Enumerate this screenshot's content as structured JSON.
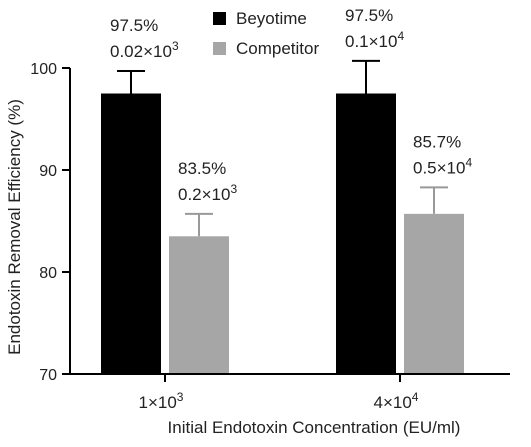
{
  "chart_data": {
    "type": "bar",
    "title": "",
    "xlabel": "Initial Endotoxin Concentration (EU/ml)",
    "ylabel": "Endotoxin Removal Efficiency (%)",
    "ylim": [
      70,
      100
    ],
    "yticks": [
      70,
      80,
      90,
      100
    ],
    "categories": [
      {
        "base": "1×10",
        "exp": "3"
      },
      {
        "base": "4×10",
        "exp": "4"
      }
    ],
    "series": [
      {
        "name": "Beyotime",
        "color": "#000000",
        "values": [
          97.5,
          97.5
        ],
        "error": [
          2.2,
          3.2
        ],
        "labels": [
          {
            "pct": "97.5%",
            "base": "0.02×10",
            "exp": "3"
          },
          {
            "pct": "97.5%",
            "base": "0.1×10",
            "exp": "4"
          }
        ]
      },
      {
        "name": "Competitor",
        "color": "#a6a6a6",
        "values": [
          83.5,
          85.7
        ],
        "error": [
          2.2,
          2.6
        ],
        "labels": [
          {
            "pct": "83.5%",
            "base": "0.2×10",
            "exp": "3"
          },
          {
            "pct": "85.7%",
            "base": "0.5×10",
            "exp": "4"
          }
        ]
      }
    ],
    "legend": {
      "position": "top"
    },
    "grid": false
  }
}
